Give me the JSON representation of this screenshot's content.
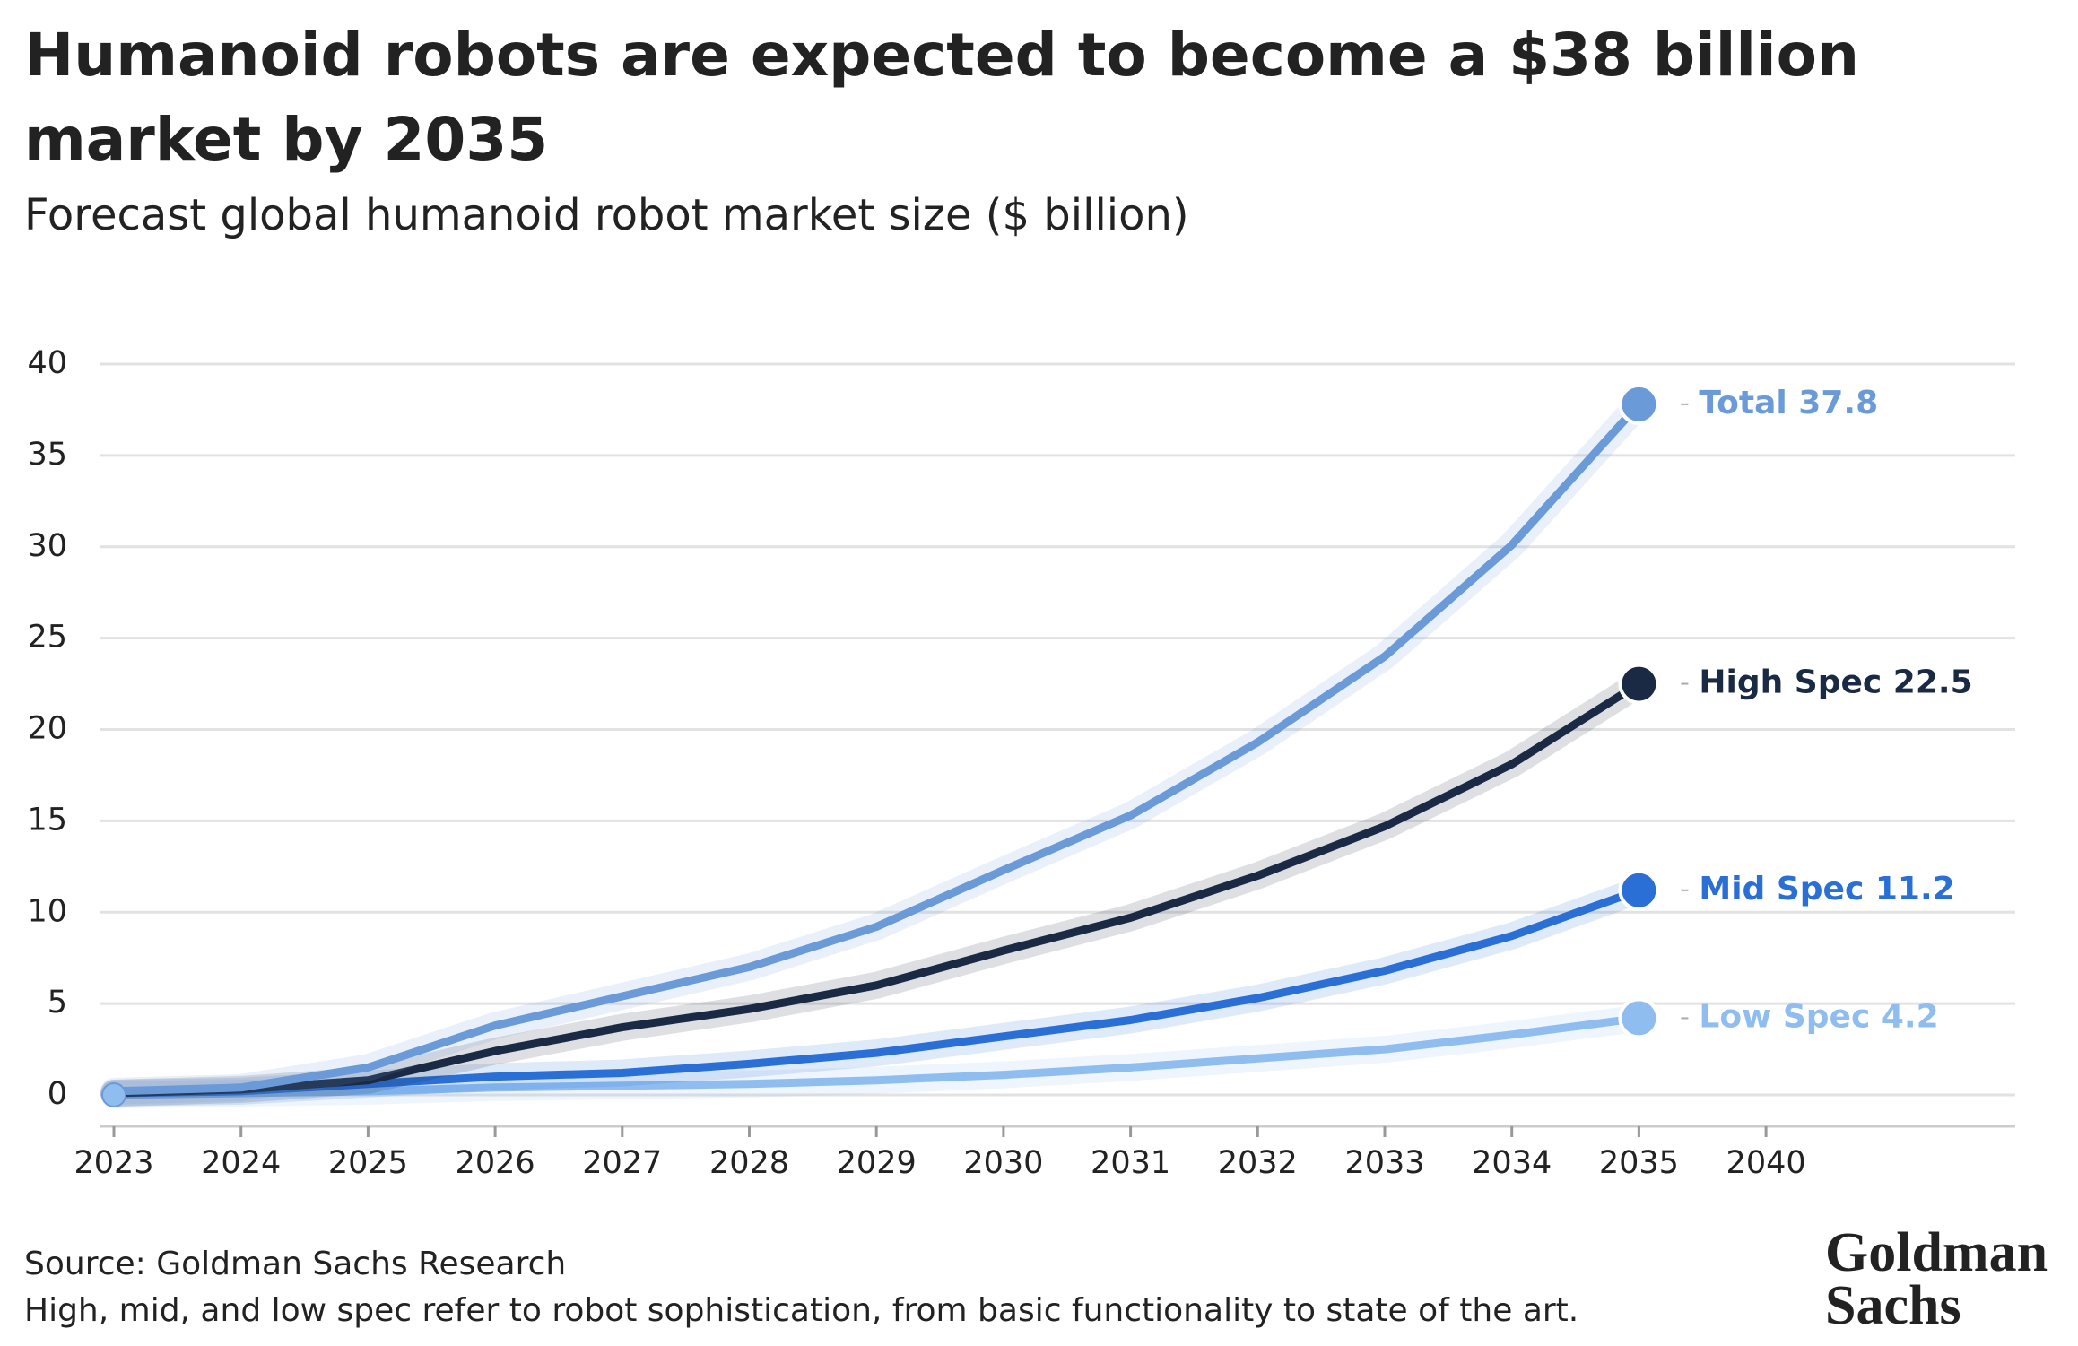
{
  "chart_data": {
    "type": "line",
    "title": [
      "Humanoid robots are expected to become a $38 billion",
      "market by 2035"
    ],
    "subtitle": "Forecast global humanoid robot market size ($ billion)",
    "categories": [
      "2023",
      "2024",
      "2025",
      "2026",
      "2027",
      "2028",
      "2029",
      "2030",
      "2031",
      "2032",
      "2033",
      "2034",
      "2035",
      "2040"
    ],
    "series": [
      {
        "name": "Total",
        "color": "#6a9ad8",
        "values": [
          0.2,
          0.4,
          1.5,
          3.8,
          5.4,
          7.0,
          9.2,
          12.3,
          15.3,
          19.3,
          24.0,
          30.1,
          37.8,
          null
        ]
      },
      {
        "name": "High Spec",
        "color": "#1b2a44",
        "values": [
          0.1,
          0.3,
          0.8,
          2.4,
          3.7,
          4.7,
          6.0,
          7.9,
          9.7,
          12.0,
          14.7,
          18.1,
          22.5,
          null
        ]
      },
      {
        "name": "Mid Spec",
        "color": "#2a6fd6",
        "values": [
          0.1,
          0.2,
          0.6,
          1.0,
          1.2,
          1.7,
          2.3,
          3.2,
          4.1,
          5.3,
          6.8,
          8.7,
          11.2,
          null
        ]
      },
      {
        "name": "Low Spec",
        "color": "#8fbdf0",
        "values": [
          0.0,
          0.1,
          0.2,
          0.4,
          0.5,
          0.6,
          0.8,
          1.1,
          1.5,
          2.0,
          2.5,
          3.3,
          4.2,
          null
        ]
      }
    ],
    "ylim": [
      0,
      40
    ],
    "yticks": [
      0,
      5,
      10,
      15,
      20,
      25,
      30,
      35,
      40
    ],
    "grid": true,
    "source": "Source: Goldman Sachs Research",
    "note": "High, mid, and low spec refer to robot sophistication, from basic functionality to state of the art.",
    "logo": [
      "Goldman",
      "Sachs"
    ]
  }
}
